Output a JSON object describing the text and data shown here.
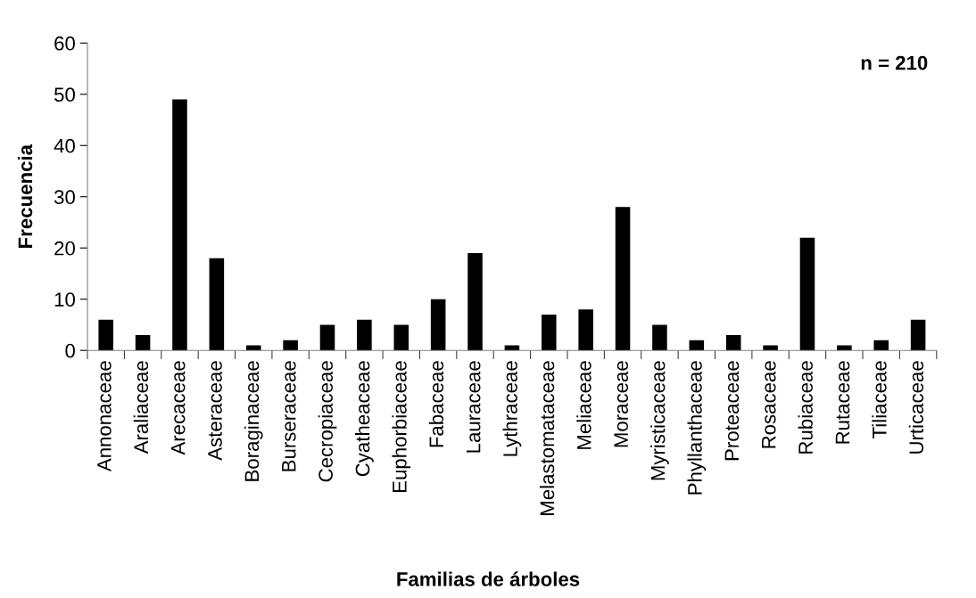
{
  "chart_data": {
    "type": "bar",
    "xlabel": "Familias de árboles",
    "ylabel": "Frecuencia",
    "annotations": [
      "n = 210"
    ],
    "categories": [
      "Annonaceae",
      "Araliaceae",
      "Arecaceae",
      "Asteraceae",
      "Boraginaceae",
      "Burseraceae",
      "Cecropiaceae",
      "Cyatheaceae",
      "Euphorbiaceae",
      "Fabaceae",
      "Lauraceae",
      "Lythraceae",
      "Melastomataceae",
      "Meliaceae",
      "Moraceae",
      "Myristicaceae",
      "Phyllanthaceae",
      "Proteaceae",
      "Rosaceae",
      "Rubiaceae",
      "Rutaceae",
      "Tiliaceae",
      "Urticaceae"
    ],
    "values": [
      6,
      3,
      49,
      18,
      1,
      2,
      5,
      6,
      5,
      10,
      19,
      1,
      7,
      8,
      28,
      5,
      2,
      3,
      1,
      22,
      1,
      2,
      6
    ],
    "color": "#000000",
    "ylim": [
      0,
      60
    ],
    "yticks": [
      0,
      10,
      20,
      30,
      40,
      50,
      60
    ],
    "grid": false
  }
}
